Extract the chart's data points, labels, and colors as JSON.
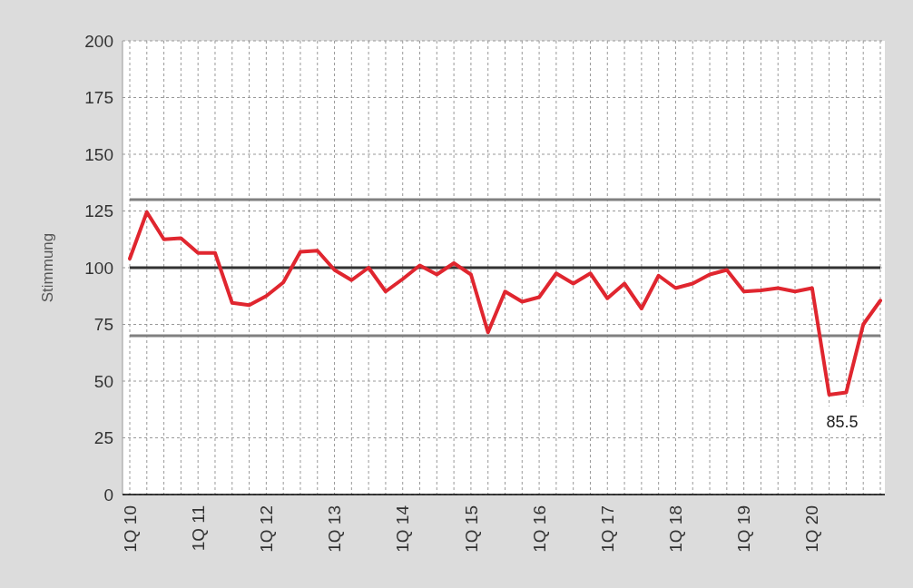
{
  "chart_data": {
    "type": "line",
    "ylabel": "Stimmung",
    "categories": [
      "1Q 10",
      null,
      null,
      null,
      "1Q 11",
      null,
      null,
      null,
      "1Q 12",
      null,
      null,
      null,
      "1Q 13",
      null,
      null,
      null,
      "1Q 14",
      null,
      null,
      null,
      "1Q 15",
      null,
      null,
      null,
      "1Q 16",
      null,
      null,
      null,
      "1Q 17",
      null,
      null,
      null,
      "1Q 18",
      null,
      null,
      null,
      "1Q 19",
      null,
      null,
      null,
      "1Q 20",
      null,
      null,
      null,
      null
    ],
    "series": [
      {
        "color": "#e0262f",
        "values": [
          104,
          124.5,
          112.5,
          113,
          106.5,
          106.5,
          84.5,
          83.5,
          87.5,
          93.5,
          107,
          107.5,
          99,
          94.5,
          100,
          89.5,
          95,
          101,
          97,
          102,
          97,
          71.5,
          89.5,
          85,
          87,
          97.5,
          93,
          97.5,
          86.5,
          93,
          82,
          96.5,
          91,
          93,
          97,
          99,
          89.5,
          90,
          91,
          89.5,
          91,
          44,
          45,
          75,
          85.5
        ]
      }
    ],
    "ylim": [
      0,
      200
    ],
    "yticks": [
      0,
      25,
      50,
      75,
      100,
      125,
      150,
      175,
      200
    ],
    "grid": true,
    "marker": "none",
    "line_style": "solid",
    "ref_lines": [
      {
        "axis": "y",
        "value": 130,
        "color": "#808080"
      },
      {
        "axis": "y",
        "value": 100,
        "color": "#333333"
      },
      {
        "axis": "y",
        "value": 70,
        "color": "#808080"
      }
    ],
    "annotations": [
      "85.5"
    ]
  }
}
